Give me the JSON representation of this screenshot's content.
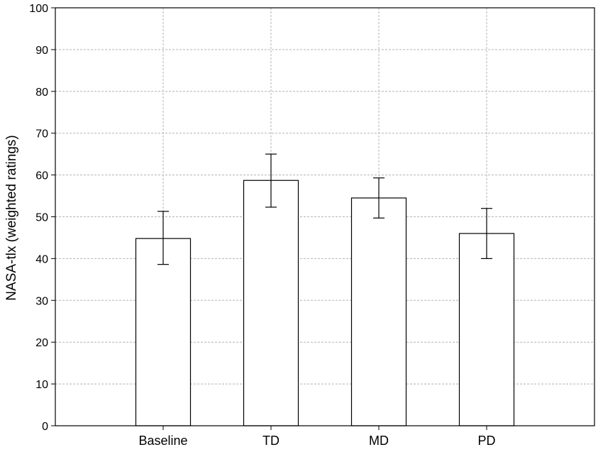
{
  "chart_data": {
    "type": "bar",
    "title": "",
    "xlabel": "",
    "ylabel": "NASA-tlx (weighted ratings)",
    "ylim": [
      0,
      100
    ],
    "yticks": [
      0,
      10,
      20,
      30,
      40,
      50,
      60,
      70,
      80,
      90,
      100
    ],
    "grid": true,
    "legend": "none",
    "categories": [
      "Baseline",
      "TD",
      "MD",
      "PD"
    ],
    "values": [
      44.8,
      58.7,
      54.5,
      46.0
    ],
    "error_bars": {
      "lower": [
        38.6,
        52.3,
        49.7,
        40.0
      ],
      "upper": [
        51.3,
        65.0,
        59.3,
        52.0
      ]
    },
    "colors": {
      "bar_fill": "#ffffff",
      "bar_stroke": "#000000",
      "grid": "#b4b4b4",
      "axis": "#000000"
    }
  }
}
